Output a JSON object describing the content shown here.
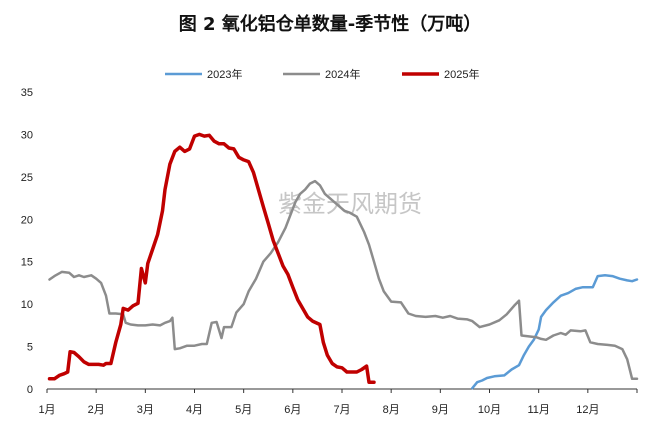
{
  "chart_data": {
    "type": "line",
    "title": "图 2  氧化铝仓单数量-季节性（万吨）",
    "watermark": "紫金天风期货",
    "xlabel": "",
    "ylabel": "",
    "ylim": [
      0,
      35
    ],
    "yticks": [
      "0",
      "5",
      "10",
      "15",
      "20",
      "25",
      "30",
      "35"
    ],
    "xticks": [
      "1月",
      "2月",
      "3月",
      "4月",
      "5月",
      "6月",
      "7月",
      "8月",
      "9月",
      "10月",
      "11月",
      "12月"
    ],
    "grid": false,
    "legend_position": "top",
    "x_unit": "month (1 = 1月初, 13 = 年末)",
    "series": [
      {
        "name": "2023年",
        "color": "#5b9bd5",
        "points": [
          [
            9.65,
            0.1
          ],
          [
            9.75,
            0.8
          ],
          [
            9.85,
            1.0
          ],
          [
            9.95,
            1.3
          ],
          [
            10.1,
            1.5
          ],
          [
            10.3,
            1.6
          ],
          [
            10.45,
            2.3
          ],
          [
            10.6,
            2.8
          ],
          [
            10.7,
            4.0
          ],
          [
            10.8,
            5.0
          ],
          [
            10.9,
            5.8
          ],
          [
            11.0,
            7.0
          ],
          [
            11.05,
            8.5
          ],
          [
            11.15,
            9.3
          ],
          [
            11.3,
            10.2
          ],
          [
            11.45,
            11.0
          ],
          [
            11.6,
            11.3
          ],
          [
            11.75,
            11.8
          ],
          [
            11.9,
            12.0
          ],
          [
            12.1,
            12.0
          ],
          [
            12.2,
            13.3
          ],
          [
            12.35,
            13.4
          ],
          [
            12.5,
            13.3
          ],
          [
            12.65,
            13.0
          ],
          [
            12.8,
            12.8
          ],
          [
            12.9,
            12.7
          ],
          [
            13.0,
            12.9
          ]
        ]
      },
      {
        "name": "2024年",
        "color": "#8c8c8c",
        "points": [
          [
            1.05,
            12.9
          ],
          [
            1.15,
            13.3
          ],
          [
            1.3,
            13.8
          ],
          [
            1.45,
            13.7
          ],
          [
            1.55,
            13.2
          ],
          [
            1.65,
            13.4
          ],
          [
            1.75,
            13.2
          ],
          [
            1.9,
            13.4
          ],
          [
            2.0,
            13.0
          ],
          [
            2.1,
            12.5
          ],
          [
            2.2,
            11.0
          ],
          [
            2.27,
            8.9
          ],
          [
            2.4,
            8.9
          ],
          [
            2.55,
            8.8
          ],
          [
            2.6,
            7.8
          ],
          [
            2.7,
            7.6
          ],
          [
            2.85,
            7.5
          ],
          [
            3.0,
            7.5
          ],
          [
            3.15,
            7.6
          ],
          [
            3.3,
            7.5
          ],
          [
            3.4,
            7.8
          ],
          [
            3.5,
            8.0
          ],
          [
            3.55,
            8.4
          ],
          [
            3.6,
            4.7
          ],
          [
            3.7,
            4.8
          ],
          [
            3.85,
            5.1
          ],
          [
            4.0,
            5.1
          ],
          [
            4.15,
            5.3
          ],
          [
            4.25,
            5.3
          ],
          [
            4.35,
            7.8
          ],
          [
            4.45,
            7.9
          ],
          [
            4.55,
            6.0
          ],
          [
            4.6,
            7.3
          ],
          [
            4.75,
            7.3
          ],
          [
            4.85,
            9.0
          ],
          [
            5.0,
            10.0
          ],
          [
            5.1,
            11.5
          ],
          [
            5.25,
            13.0
          ],
          [
            5.4,
            15.0
          ],
          [
            5.55,
            16.0
          ],
          [
            5.7,
            17.3
          ],
          [
            5.85,
            19.0
          ],
          [
            5.95,
            20.5
          ],
          [
            6.05,
            22.0
          ],
          [
            6.15,
            23.0
          ],
          [
            6.25,
            23.5
          ],
          [
            6.35,
            24.2
          ],
          [
            6.45,
            24.5
          ],
          [
            6.55,
            24.0
          ],
          [
            6.65,
            23.0
          ],
          [
            6.75,
            22.5
          ],
          [
            6.85,
            22.0
          ],
          [
            6.95,
            21.5
          ],
          [
            7.05,
            21.0
          ],
          [
            7.15,
            20.8
          ],
          [
            7.3,
            20.3
          ],
          [
            7.45,
            18.5
          ],
          [
            7.55,
            17.0
          ],
          [
            7.65,
            15.0
          ],
          [
            7.75,
            13.0
          ],
          [
            7.85,
            11.5
          ],
          [
            8.0,
            10.3
          ],
          [
            8.2,
            10.2
          ],
          [
            8.35,
            8.9
          ],
          [
            8.5,
            8.6
          ],
          [
            8.7,
            8.5
          ],
          [
            8.9,
            8.6
          ],
          [
            9.05,
            8.4
          ],
          [
            9.2,
            8.6
          ],
          [
            9.35,
            8.3
          ],
          [
            9.55,
            8.2
          ],
          [
            9.65,
            8.0
          ],
          [
            9.8,
            7.3
          ],
          [
            10.0,
            7.6
          ],
          [
            10.2,
            8.1
          ],
          [
            10.35,
            8.8
          ],
          [
            10.5,
            9.8
          ],
          [
            10.6,
            10.4
          ],
          [
            10.65,
            6.3
          ],
          [
            10.8,
            6.2
          ],
          [
            10.95,
            6.1
          ],
          [
            11.05,
            5.9
          ],
          [
            11.15,
            5.8
          ],
          [
            11.3,
            6.3
          ],
          [
            11.45,
            6.6
          ],
          [
            11.55,
            6.4
          ],
          [
            11.65,
            6.9
          ],
          [
            11.85,
            6.8
          ],
          [
            11.95,
            6.9
          ],
          [
            12.05,
            5.5
          ],
          [
            12.2,
            5.3
          ],
          [
            12.4,
            5.2
          ],
          [
            12.55,
            5.1
          ],
          [
            12.7,
            4.7
          ],
          [
            12.8,
            3.5
          ],
          [
            12.9,
            1.2
          ],
          [
            13.0,
            1.2
          ]
        ]
      },
      {
        "name": "2025年",
        "color": "#c00000",
        "points": [
          [
            1.05,
            1.2
          ],
          [
            1.15,
            1.2
          ],
          [
            1.25,
            1.6
          ],
          [
            1.35,
            1.8
          ],
          [
            1.42,
            2.0
          ],
          [
            1.47,
            4.4
          ],
          [
            1.55,
            4.3
          ],
          [
            1.65,
            3.8
          ],
          [
            1.75,
            3.2
          ],
          [
            1.85,
            2.9
          ],
          [
            1.95,
            2.9
          ],
          [
            2.05,
            2.9
          ],
          [
            2.15,
            2.8
          ],
          [
            2.2,
            3.0
          ],
          [
            2.3,
            3.0
          ],
          [
            2.4,
            5.5
          ],
          [
            2.5,
            7.6
          ],
          [
            2.55,
            9.5
          ],
          [
            2.65,
            9.3
          ],
          [
            2.75,
            9.8
          ],
          [
            2.85,
            10.1
          ],
          [
            2.92,
            14.2
          ],
          [
            3.0,
            12.5
          ],
          [
            3.05,
            14.8
          ],
          [
            3.15,
            16.5
          ],
          [
            3.25,
            18.2
          ],
          [
            3.35,
            21.0
          ],
          [
            3.4,
            23.5
          ],
          [
            3.5,
            26.5
          ],
          [
            3.6,
            28.0
          ],
          [
            3.7,
            28.5
          ],
          [
            3.8,
            28.0
          ],
          [
            3.9,
            28.3
          ],
          [
            4.0,
            29.8
          ],
          [
            4.1,
            30.0
          ],
          [
            4.2,
            29.8
          ],
          [
            4.3,
            29.9
          ],
          [
            4.4,
            29.2
          ],
          [
            4.5,
            28.9
          ],
          [
            4.6,
            28.9
          ],
          [
            4.7,
            28.4
          ],
          [
            4.8,
            28.3
          ],
          [
            4.9,
            27.3
          ],
          [
            5.0,
            27.0
          ],
          [
            5.1,
            26.8
          ],
          [
            5.2,
            25.5
          ],
          [
            5.3,
            23.5
          ],
          [
            5.4,
            21.5
          ],
          [
            5.5,
            19.5
          ],
          [
            5.6,
            17.5
          ],
          [
            5.7,
            16.0
          ],
          [
            5.8,
            14.5
          ],
          [
            5.9,
            13.5
          ],
          [
            6.0,
            12.0
          ],
          [
            6.1,
            10.5
          ],
          [
            6.2,
            9.5
          ],
          [
            6.3,
            8.5
          ],
          [
            6.4,
            8.0
          ],
          [
            6.55,
            7.6
          ],
          [
            6.62,
            5.5
          ],
          [
            6.7,
            4.0
          ],
          [
            6.8,
            3.0
          ],
          [
            6.9,
            2.6
          ],
          [
            7.0,
            2.5
          ],
          [
            7.1,
            2.0
          ],
          [
            7.2,
            2.0
          ],
          [
            7.3,
            2.0
          ],
          [
            7.4,
            2.3
          ],
          [
            7.5,
            2.7
          ],
          [
            7.55,
            0.8
          ],
          [
            7.65,
            0.8
          ]
        ]
      }
    ]
  }
}
